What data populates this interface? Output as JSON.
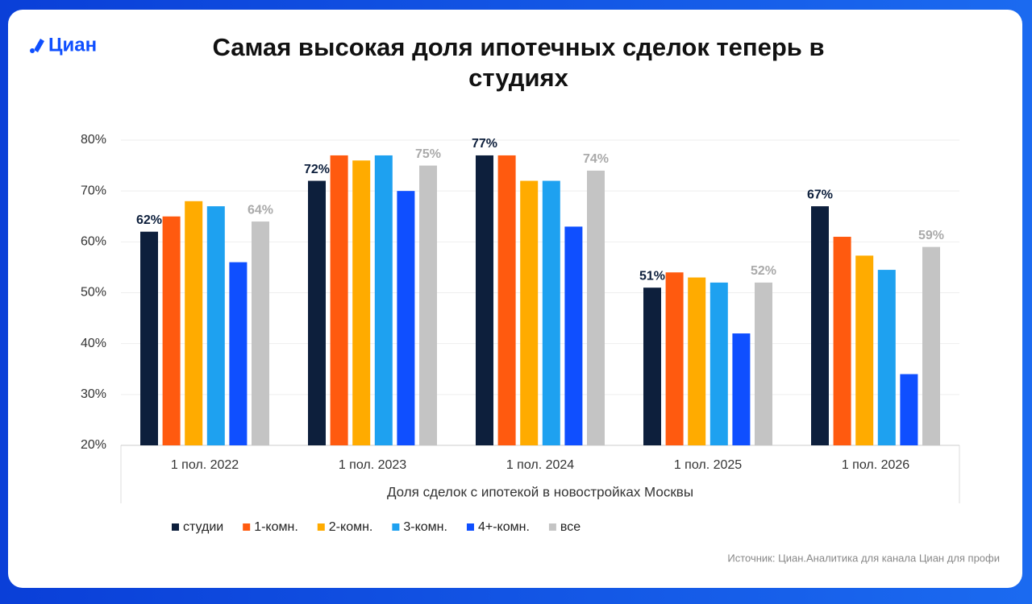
{
  "brand": "Циан",
  "chart_data": {
    "type": "bar",
    "title": "Самая высокая доля ипотечных сделок теперь в студиях",
    "x_label": "Доля сделок с ипотекой в новостройках Москвы",
    "categories": [
      "1 пол. 2022",
      "1 пол. 2023",
      "1 пол. 2024",
      "1 пол. 2025",
      "1 пол. 2026"
    ],
    "series": [
      {
        "name": "студии",
        "color": "#0d1f3c",
        "values": [
          62,
          72,
          77,
          51,
          67
        ],
        "value_labels": [
          "62%",
          "72%",
          "77%",
          "51%",
          "67%"
        ]
      },
      {
        "name": "1-комн.",
        "color": "#ff5a0f",
        "values": [
          65,
          77,
          77,
          54,
          61
        ]
      },
      {
        "name": "2-комн.",
        "color": "#ffab00",
        "values": [
          68,
          76,
          72,
          53,
          57.3
        ]
      },
      {
        "name": "3-комн.",
        "color": "#1ea1f0",
        "values": [
          67,
          77,
          72,
          52,
          54.5
        ]
      },
      {
        "name": "4+-комн.",
        "color": "#0f4fff",
        "values": [
          56,
          70,
          63,
          42,
          34
        ]
      },
      {
        "name": "все",
        "color": "#c4c4c4",
        "values": [
          64,
          75,
          74,
          52,
          59
        ],
        "value_labels": [
          "64%",
          "75%",
          "74%",
          "52%",
          "59%"
        ]
      }
    ],
    "ylim": [
      20,
      80
    ],
    "yticks": [
      {
        "value": 20,
        "label": "20%"
      },
      {
        "value": 30,
        "label": "30%"
      },
      {
        "value": 40,
        "label": "40%"
      },
      {
        "value": 50,
        "label": "50%"
      },
      {
        "value": 60,
        "label": "60%"
      },
      {
        "value": 70,
        "label": "70%"
      },
      {
        "value": 80,
        "label": "80%"
      }
    ],
    "grid": true
  },
  "source": "Источник: Циан.Аналитика для канала Циан для профи"
}
